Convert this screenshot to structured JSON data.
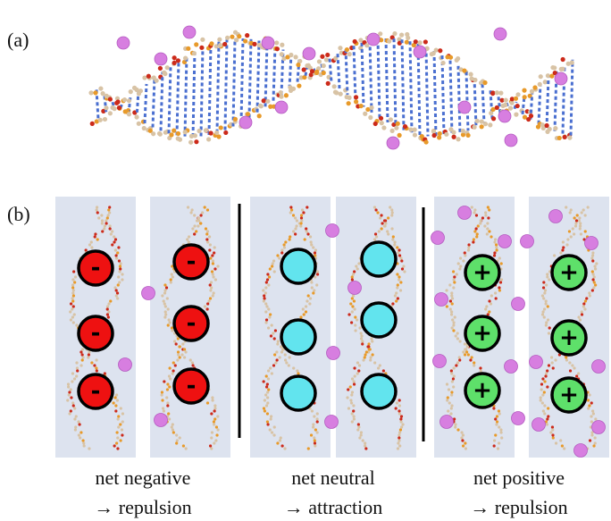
{
  "panel_a": {
    "label": "(a)"
  },
  "panel_b": {
    "label": "(b)",
    "groups": [
      {
        "charge_symbol": "-",
        "caption_line1": "net negative",
        "caption_line2": "→ repulsion"
      },
      {
        "caption_line1": "net neutral",
        "caption_line2": "→ attraction"
      },
      {
        "charge_symbol": "+",
        "caption_line1": "net positive",
        "caption_line2": "→ repulsion"
      }
    ]
  }
}
